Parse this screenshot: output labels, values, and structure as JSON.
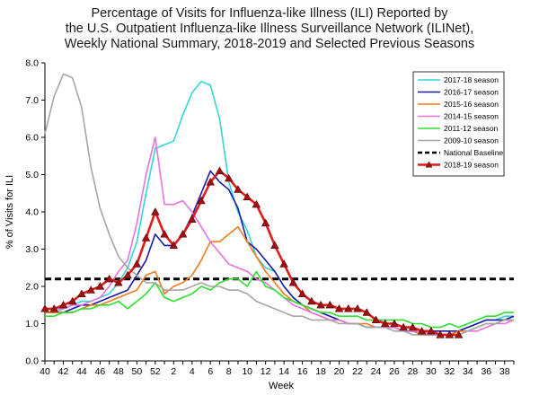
{
  "chart_data": {
    "type": "line",
    "title_lines": [
      "Percentage of Visits for Influenza-like Illness (ILI) Reported by",
      "the U.S. Outpatient Influenza-like Illness Surveillance Network (ILINet),",
      "Weekly National Summary, 2018-2019 and Selected Previous Seasons"
    ],
    "xlabel": "Week",
    "ylabel": "% of Visits for ILI",
    "ylim": [
      0,
      8
    ],
    "y_ticks": [
      "0.0",
      "1.0",
      "2.0",
      "3.0",
      "4.0",
      "5.0",
      "6.0",
      "7.0",
      "8.0"
    ],
    "x_tick_labels": [
      "40",
      "42",
      "44",
      "46",
      "48",
      "50",
      "52",
      "2",
      "4",
      "6",
      "8",
      "10",
      "12",
      "14",
      "16",
      "18",
      "20",
      "22",
      "24",
      "26",
      "28",
      "30",
      "32",
      "34",
      "36",
      "38"
    ],
    "x_weeks": [
      "40",
      "41",
      "42",
      "43",
      "44",
      "45",
      "46",
      "47",
      "48",
      "49",
      "50",
      "51",
      "52",
      "1",
      "2",
      "3",
      "4",
      "5",
      "6",
      "7",
      "8",
      "9",
      "10",
      "11",
      "12",
      "13",
      "14",
      "15",
      "16",
      "17",
      "18",
      "19",
      "20",
      "21",
      "22",
      "23",
      "24",
      "25",
      "26",
      "27",
      "28",
      "29",
      "30",
      "31",
      "32",
      "33",
      "34",
      "35",
      "36",
      "37",
      "38",
      "39"
    ],
    "legend_placement": "top-right",
    "grid": false,
    "baseline": {
      "name": "National Baseline",
      "value": 2.2,
      "color": "#000000"
    },
    "series": [
      {
        "name": "2017-18 season",
        "color": "#33d6d6",
        "values": [
          1.3,
          1.3,
          1.4,
          1.5,
          1.6,
          1.6,
          1.7,
          1.8,
          2.1,
          2.5,
          3.2,
          4.5,
          5.7,
          5.8,
          5.9,
          6.6,
          7.2,
          7.5,
          7.4,
          6.5,
          4.8,
          4.0,
          3.5,
          2.8,
          2.5,
          2.4,
          2.0,
          1.7,
          1.5,
          1.4,
          1.3,
          1.2,
          1.1,
          1.0,
          1.0,
          0.9,
          0.9,
          0.9,
          0.9,
          0.8,
          0.8,
          0.8,
          0.7,
          0.7,
          0.7,
          0.8,
          0.9,
          1.0,
          1.1,
          1.1,
          1.2,
          1.2
        ]
      },
      {
        "name": "2016-17 season",
        "color": "#1a1aa6",
        "values": [
          1.3,
          1.3,
          1.3,
          1.4,
          1.5,
          1.5,
          1.6,
          1.7,
          1.8,
          1.9,
          2.3,
          2.7,
          3.4,
          3.1,
          3.1,
          3.4,
          3.9,
          4.5,
          5.1,
          4.8,
          4.6,
          4.1,
          3.2,
          3.0,
          2.7,
          2.4,
          2.0,
          1.7,
          1.5,
          1.4,
          1.3,
          1.2,
          1.1,
          1.0,
          1.0,
          0.9,
          0.9,
          0.9,
          0.9,
          0.8,
          0.8,
          0.8,
          0.8,
          0.8,
          0.8,
          0.8,
          0.9,
          1.0,
          1.1,
          1.1,
          1.1,
          1.2
        ]
      },
      {
        "name": "2015-16 season",
        "color": "#f07b1d",
        "values": [
          1.3,
          1.3,
          1.3,
          1.3,
          1.4,
          1.5,
          1.5,
          1.6,
          1.7,
          1.8,
          1.9,
          2.3,
          2.4,
          1.8,
          2.0,
          2.1,
          2.3,
          2.7,
          3.2,
          3.2,
          3.4,
          3.6,
          3.2,
          2.8,
          2.4,
          2.1,
          1.8,
          1.6,
          1.5,
          1.3,
          1.2,
          1.1,
          1.1,
          1.0,
          1.0,
          1.0,
          0.9,
          0.9,
          0.9,
          0.8,
          0.8,
          0.7,
          0.7,
          0.7,
          0.7,
          0.8,
          0.8,
          0.9,
          1.0,
          1.0,
          1.1,
          1.1
        ]
      },
      {
        "name": "2014-15 season",
        "color": "#e872e0",
        "values": [
          1.4,
          1.4,
          1.4,
          1.5,
          1.5,
          1.6,
          1.7,
          2.0,
          2.4,
          2.7,
          3.7,
          5.0,
          6.0,
          4.2,
          4.2,
          4.3,
          4.0,
          3.6,
          3.2,
          2.9,
          2.6,
          2.5,
          2.4,
          2.2,
          2.1,
          1.9,
          1.7,
          1.5,
          1.4,
          1.3,
          1.2,
          1.1,
          1.1,
          1.0,
          1.0,
          0.9,
          0.9,
          0.9,
          0.9,
          0.8,
          0.8,
          0.8,
          0.7,
          0.7,
          0.7,
          0.7,
          0.8,
          0.8,
          0.9,
          1.0,
          1.0,
          1.1
        ]
      },
      {
        "name": "2011-12 season",
        "color": "#2ee02e",
        "values": [
          1.2,
          1.2,
          1.3,
          1.3,
          1.4,
          1.4,
          1.5,
          1.5,
          1.6,
          1.4,
          1.6,
          1.8,
          2.1,
          1.7,
          1.6,
          1.7,
          1.8,
          2.0,
          1.9,
          2.1,
          2.2,
          2.2,
          2.0,
          2.4,
          2.0,
          1.9,
          1.7,
          1.6,
          1.5,
          1.4,
          1.3,
          1.3,
          1.2,
          1.2,
          1.2,
          1.1,
          1.1,
          1.1,
          1.1,
          1.1,
          1.0,
          1.0,
          0.9,
          0.9,
          1.0,
          0.9,
          1.0,
          1.1,
          1.2,
          1.2,
          1.3,
          1.3
        ]
      },
      {
        "name": "2009-10 season",
        "color": "#a6a6a6",
        "values": [
          6.1,
          7.1,
          7.7,
          7.6,
          6.8,
          5.2,
          4.1,
          3.4,
          2.8,
          2.5,
          2.3,
          2.1,
          2.1,
          1.9,
          1.9,
          1.9,
          2.0,
          2.1,
          2.0,
          2.0,
          1.9,
          1.9,
          1.8,
          1.6,
          1.5,
          1.4,
          1.3,
          1.2,
          1.2,
          1.1,
          1.1,
          1.1,
          1.0,
          1.0,
          1.0,
          0.9,
          0.9,
          0.9,
          0.8,
          0.8,
          0.7,
          0.7,
          0.7,
          0.7,
          0.7,
          0.7,
          0.8,
          0.9,
          1.0,
          1.0,
          1.1,
          1.1
        ]
      },
      {
        "name": "2018-19 season",
        "color": "#e31a1a",
        "marker_color": "#a01010",
        "values": [
          1.4,
          1.4,
          1.5,
          1.6,
          1.8,
          1.9,
          2.0,
          2.2,
          2.1,
          2.3,
          2.6,
          3.3,
          4.0,
          3.4,
          3.1,
          3.4,
          3.8,
          4.3,
          4.8,
          5.1,
          4.9,
          4.6,
          4.4,
          4.2,
          3.7,
          3.1,
          2.6,
          2.1,
          1.8,
          1.6,
          1.5,
          1.5,
          1.4,
          1.4,
          1.4,
          1.3,
          1.1,
          1.0,
          1.0,
          0.9,
          0.9,
          0.8,
          0.8,
          0.7,
          0.7,
          0.7
        ]
      }
    ]
  }
}
